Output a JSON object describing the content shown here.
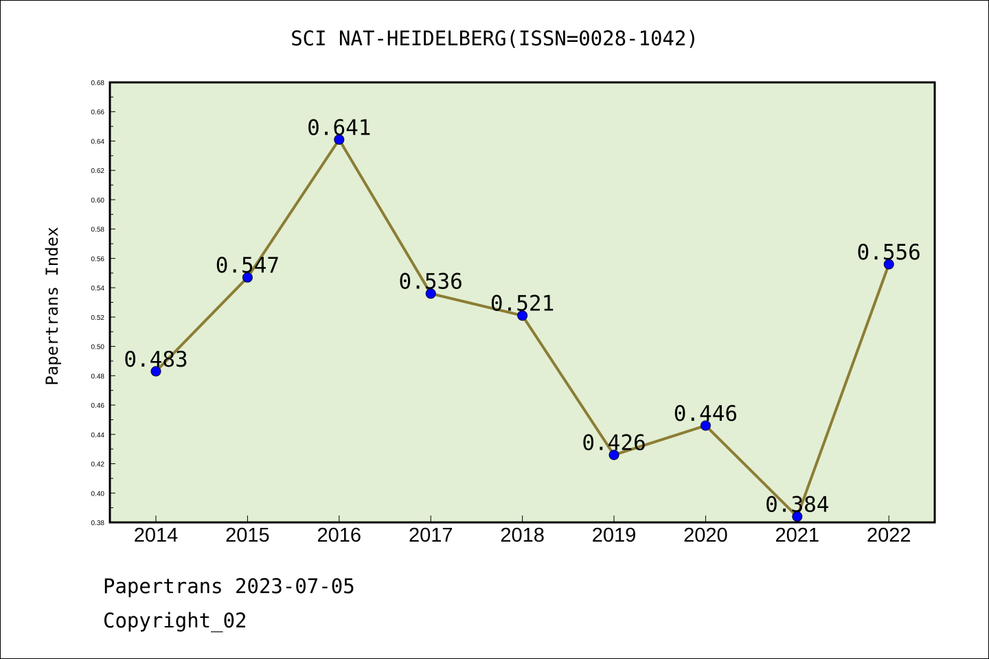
{
  "chart_data": {
    "type": "line",
    "title": "SCI NAT-HEIDELBERG(ISSN=0028-1042)",
    "xlabel": "",
    "ylabel": "Papertrans Index",
    "categories": [
      "2014",
      "2015",
      "2016",
      "2017",
      "2018",
      "2019",
      "2020",
      "2021",
      "2022"
    ],
    "series": [
      {
        "values": [
          0.483,
          0.547,
          0.641,
          0.536,
          0.521,
          0.426,
          0.446,
          0.384,
          0.556
        ],
        "data_labels": [
          "0.483",
          "0.547",
          "0.641",
          "0.536",
          "0.521",
          "0.426",
          "0.446",
          "0.384",
          "0.556"
        ]
      }
    ],
    "ylim": [
      0.38,
      0.68
    ],
    "yticks": [
      "0.38",
      "0.40",
      "0.42",
      "0.44",
      "0.46",
      "0.48",
      "0.50",
      "0.52",
      "0.54",
      "0.56",
      "0.58",
      "0.60",
      "0.62",
      "0.64",
      "0.66",
      "0.68"
    ],
    "grid": false,
    "legend": "none",
    "colors": {
      "plot_background": "#e2efd4",
      "line": "#8c7d35",
      "marker": "#0000ff",
      "axis": "#000000"
    }
  },
  "footer": {
    "line1": "Papertrans 2023-07-05",
    "line2": "Copyright_02"
  }
}
